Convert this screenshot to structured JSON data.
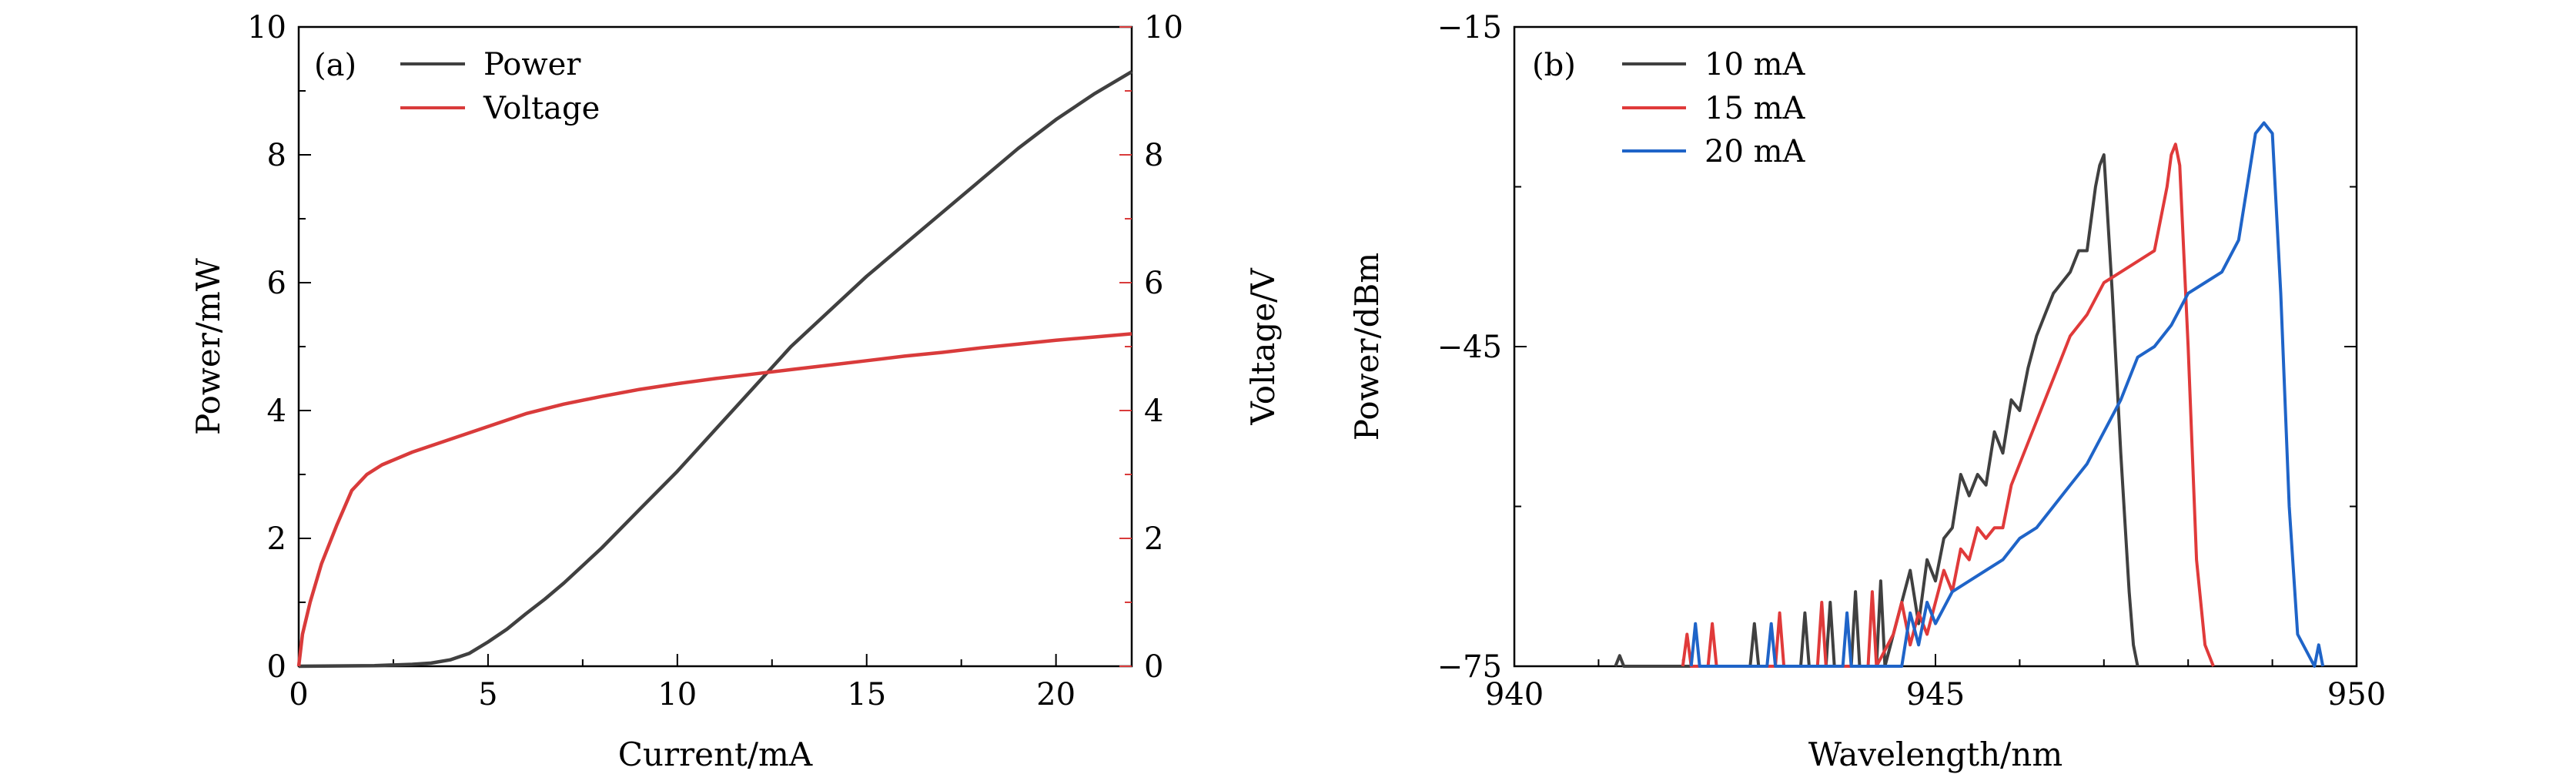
{
  "chart_data": [
    {
      "panel_label": "(a)",
      "type": "line",
      "xlabel": "Current/mA",
      "ylabel_left": "Power/mW",
      "ylabel_right": "Voltage/V",
      "xlim": [
        0,
        22
      ],
      "ylim_left": [
        0,
        10
      ],
      "ylim_right": [
        0,
        10
      ],
      "x_ticks": [
        0,
        5,
        10,
        15,
        20
      ],
      "y_left_ticks": [
        0,
        2,
        4,
        6,
        8,
        10
      ],
      "y_right_ticks": [
        0,
        2,
        4,
        6,
        8,
        10
      ],
      "legend_position": "top-left",
      "series": [
        {
          "name": "Power",
          "axis": "left",
          "color": "#404040",
          "x": [
            0,
            2,
            3,
            3.5,
            4,
            4.5,
            5,
            5.5,
            6,
            6.5,
            7,
            8,
            9,
            10,
            11,
            12,
            13,
            14,
            15,
            16,
            17,
            18,
            19,
            20,
            21,
            22
          ],
          "y": [
            0,
            0.01,
            0.03,
            0.05,
            0.1,
            0.2,
            0.38,
            0.58,
            0.82,
            1.05,
            1.3,
            1.85,
            2.45,
            3.05,
            3.7,
            4.35,
            5.0,
            5.55,
            6.1,
            6.6,
            7.1,
            7.6,
            8.1,
            8.55,
            8.95,
            9.3
          ]
        },
        {
          "name": "Voltage",
          "axis": "right",
          "color": "#d93b3b",
          "x": [
            0,
            0.1,
            0.3,
            0.6,
            1.0,
            1.4,
            1.8,
            2.2,
            3,
            4,
            5,
            6,
            7,
            8,
            9,
            10,
            11,
            12,
            13,
            14,
            15,
            16,
            17,
            18,
            19,
            20,
            21,
            22
          ],
          "y": [
            0,
            0.5,
            1.0,
            1.6,
            2.2,
            2.75,
            3.0,
            3.15,
            3.35,
            3.55,
            3.75,
            3.95,
            4.1,
            4.22,
            4.33,
            4.42,
            4.5,
            4.57,
            4.64,
            4.71,
            4.78,
            4.85,
            4.91,
            4.98,
            5.04,
            5.1,
            5.15,
            5.2
          ]
        }
      ]
    },
    {
      "panel_label": "(b)",
      "type": "line",
      "xlabel": "Wavelength/nm",
      "ylabel": "Power/dBm",
      "xlim": [
        940,
        950
      ],
      "ylim": [
        -75,
        -15
      ],
      "x_ticks": [
        940,
        945,
        950
      ],
      "y_ticks": [
        -75,
        -45,
        -15
      ],
      "y_tick_labels": [
        "−75",
        "−45",
        "−15"
      ],
      "legend_position": "top-left",
      "series": [
        {
          "name": "10 mA",
          "color": "#404040",
          "x": [
            941.2,
            941.25,
            941.3,
            942.8,
            942.85,
            942.9,
            943.4,
            943.45,
            943.5,
            943.7,
            943.75,
            943.8,
            944.0,
            944.05,
            944.1,
            944.3,
            944.35,
            944.4,
            944.6,
            944.7,
            944.8,
            944.9,
            945.0,
            945.1,
            945.2,
            945.3,
            945.4,
            945.5,
            945.6,
            945.7,
            945.8,
            945.9,
            946.0,
            946.1,
            946.2,
            946.3,
            946.4,
            946.5,
            946.6,
            946.7,
            946.8,
            946.9,
            946.95,
            947.0,
            947.1,
            947.2,
            947.3,
            947.35,
            947.4
          ],
          "y": [
            -75,
            -74,
            -75,
            -75,
            -71,
            -75,
            -75,
            -70,
            -75,
            -75,
            -69,
            -75,
            -75,
            -68,
            -75,
            -75,
            -67,
            -75,
            -69,
            -66,
            -71,
            -65,
            -67,
            -63,
            -62,
            -57,
            -59,
            -57,
            -58,
            -53,
            -55,
            -50,
            -51,
            -47,
            -44,
            -42,
            -40,
            -39,
            -38,
            -36,
            -36,
            -30,
            -28,
            -27,
            -40,
            -55,
            -68,
            -73,
            -75
          ]
        },
        {
          "name": "15 mA",
          "color": "#e03a3a",
          "x": [
            942.0,
            942.05,
            942.1,
            942.3,
            942.35,
            942.4,
            943.1,
            943.15,
            943.2,
            943.6,
            943.65,
            943.7,
            944.2,
            944.25,
            944.3,
            944.5,
            944.6,
            944.7,
            944.8,
            944.9,
            945.0,
            945.1,
            945.2,
            945.3,
            945.4,
            945.5,
            945.6,
            945.7,
            945.8,
            945.9,
            946.0,
            946.2,
            946.4,
            946.6,
            946.8,
            947.0,
            947.2,
            947.4,
            947.6,
            947.75,
            947.8,
            947.85,
            947.9,
            948.0,
            948.1,
            948.2,
            948.3
          ],
          "y": [
            -75,
            -72,
            -75,
            -75,
            -71,
            -75,
            -75,
            -70,
            -75,
            -75,
            -69,
            -75,
            -75,
            -68,
            -75,
            -72,
            -69,
            -73,
            -70,
            -72,
            -69,
            -66,
            -68,
            -64,
            -65,
            -62,
            -63,
            -62,
            -62,
            -58,
            -56,
            -52,
            -48,
            -44,
            -42,
            -39,
            -38,
            -37,
            -36,
            -30,
            -27,
            -26,
            -28,
            -45,
            -65,
            -73,
            -75
          ]
        },
        {
          "name": "20 mA",
          "color": "#1f64c8",
          "x": [
            942.1,
            942.15,
            942.2,
            943.0,
            943.05,
            943.1,
            943.9,
            943.95,
            944.0,
            944.6,
            944.7,
            944.8,
            944.9,
            945.0,
            945.2,
            945.4,
            945.6,
            945.8,
            946.0,
            946.2,
            946.4,
            946.6,
            946.8,
            947.0,
            947.2,
            947.4,
            947.6,
            947.8,
            948.0,
            948.2,
            948.4,
            948.6,
            948.7,
            948.8,
            948.9,
            949.0,
            949.1,
            949.2,
            949.3,
            949.5,
            949.55,
            949.6
          ],
          "y": [
            -75,
            -71,
            -75,
            -75,
            -71,
            -75,
            -75,
            -70,
            -75,
            -75,
            -70,
            -73,
            -69,
            -71,
            -68,
            -67,
            -66,
            -65,
            -63,
            -62,
            -60,
            -58,
            -56,
            -53,
            -50,
            -46,
            -45,
            -43,
            -40,
            -39,
            -38,
            -35,
            -30,
            -25,
            -24,
            -25,
            -40,
            -60,
            -72,
            -75,
            -73,
            -75
          ]
        }
      ]
    }
  ]
}
